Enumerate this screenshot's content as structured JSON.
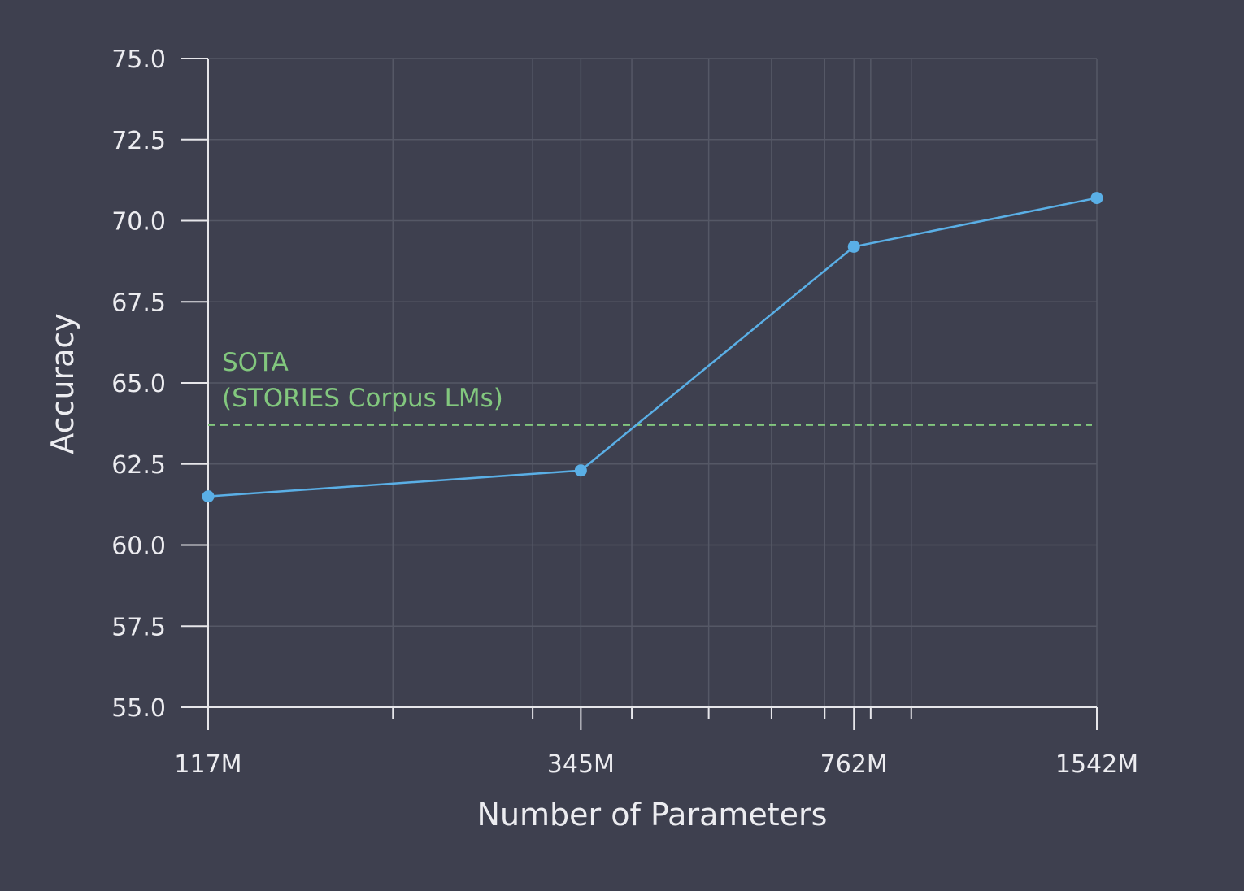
{
  "chart_data": {
    "type": "line",
    "xlabel": "Number of Parameters",
    "ylabel": "Accuracy",
    "x_scale": "log",
    "x": [
      117,
      345,
      762,
      1542
    ],
    "xtick_labels": [
      "117M",
      "345M",
      "762M",
      "1542M"
    ],
    "x_minor_ticks": [
      200,
      300,
      400,
      500,
      600,
      700,
      800,
      900
    ],
    "ylim": [
      55.0,
      75.0
    ],
    "yticks": [
      "55.0",
      "57.5",
      "60.0",
      "62.5",
      "65.0",
      "67.5",
      "70.0",
      "72.5",
      "75.0"
    ],
    "grid": true,
    "series": [
      {
        "values": [
          61.5,
          62.3,
          69.2,
          70.7
        ],
        "color": "#5aafe6"
      }
    ],
    "reference_line": {
      "value": 63.7,
      "label_line1": "SOTA",
      "label_line2": "(STORIES Corpus LMs)",
      "color": "#82c77e",
      "style": "dashed"
    }
  }
}
